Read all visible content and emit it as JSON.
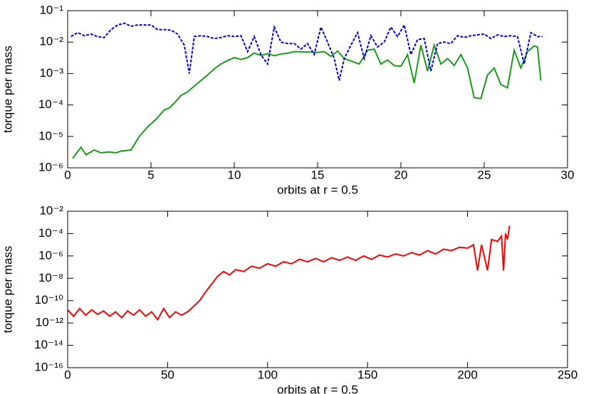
{
  "chart_data": [
    {
      "type": "line",
      "xlabel": "orbits at r = 0.5",
      "ylabel": "torque per mass",
      "log_y": true,
      "xlim": [
        0,
        30
      ],
      "xticks": [
        0,
        5,
        10,
        15,
        20,
        25,
        30
      ],
      "ylim": [
        1e-06,
        0.1
      ],
      "yticks": [
        {
          "value": 1e-06,
          "label": "10⁻⁶"
        },
        {
          "value": 1e-05,
          "label": "10⁻⁵"
        },
        {
          "value": 0.0001,
          "label": "10⁻⁴"
        },
        {
          "value": 0.001,
          "label": "10⁻³"
        },
        {
          "value": 0.01,
          "label": "10⁻²"
        },
        {
          "value": 0.1,
          "label": "10⁻¹"
        }
      ],
      "series": [
        {
          "color": "#1a9a1a",
          "dash": false,
          "x": [
            0.3,
            0.8,
            1.1,
            1.6,
            2,
            2.5,
            2.9,
            3.2,
            3.8,
            4.3,
            4.8,
            5.3,
            5.8,
            6.1,
            6.5,
            6.8,
            7.2,
            7.6,
            8,
            8.4,
            8.8,
            9.2,
            9.6,
            10,
            10.4,
            10.8,
            11.2,
            11.6,
            12,
            12.4,
            12.8,
            13.2,
            13.6,
            14,
            14.5,
            15,
            15.4,
            15.8,
            16.2,
            16.6,
            17,
            17.5,
            18,
            18.4,
            18.8,
            19.2,
            19.6,
            20,
            20.4,
            20.8,
            21.2,
            21.6,
            22,
            22.4,
            22.8,
            23.2,
            23.6,
            24,
            24.4,
            24.8,
            25.2,
            25.6,
            26,
            26.4,
            26.8,
            27.2,
            27.6,
            28,
            28.2,
            28.4
          ],
          "values": [
            2e-06,
            4.5e-06,
            2.6e-06,
            3.7e-06,
            3e-06,
            3.2e-06,
            3e-06,
            3.4e-06,
            3.7e-06,
            1e-05,
            2e-05,
            3.5e-05,
            7e-05,
            8e-05,
            0.00013,
            0.0002,
            0.00026,
            0.0004,
            0.0006,
            0.0009,
            0.0014,
            0.002,
            0.0026,
            0.0032,
            0.0028,
            0.0032,
            0.0045,
            0.0038,
            0.0043,
            0.0037,
            0.0042,
            0.0044,
            0.005,
            0.0049,
            0.0048,
            0.0047,
            0.005,
            0.0035,
            0.0052,
            0.003,
            0.0025,
            0.002,
            0.0055,
            0.006,
            0.002,
            0.0027,
            0.0018,
            0.0017,
            0.004,
            0.0005,
            0.008,
            0.0012,
            0.008,
            0.002,
            0.003,
            0.0018,
            0.004,
            0.0015,
            0.00017,
            0.00016,
            0.0009,
            0.0015,
            0.00045,
            0.00035,
            0.0055,
            0.0015,
            0.005,
            0.0075,
            0.007,
            0.0006
          ]
        },
        {
          "color": "#0000dd",
          "dash": true,
          "x": [
            0.2,
            0.6,
            1,
            1.4,
            1.8,
            2.2,
            2.6,
            3,
            3.4,
            3.8,
            4.2,
            4.6,
            5,
            5.4,
            5.8,
            6.2,
            6.6,
            7,
            7.3,
            7.6,
            8,
            8.4,
            8.8,
            9.2,
            9.6,
            10,
            10.4,
            10.8,
            11.2,
            11.6,
            12,
            12.4,
            12.8,
            13.2,
            13.6,
            14,
            14.4,
            14.8,
            15.2,
            15.6,
            16,
            16.3,
            16.6,
            17,
            17.4,
            17.8,
            18.2,
            18.6,
            19,
            19.4,
            19.8,
            20.2,
            20.6,
            21,
            21.4,
            21.8,
            22.2,
            22.6,
            23,
            23.4,
            23.8,
            24.2,
            24.6,
            25,
            25.4,
            25.8,
            26.2,
            26.6,
            27,
            27.4,
            27.8,
            28.2,
            28.5
          ],
          "values": [
            0.015,
            0.02,
            0.016,
            0.018,
            0.015,
            0.014,
            0.025,
            0.035,
            0.04,
            0.032,
            0.035,
            0.035,
            0.035,
            0.025,
            0.025,
            0.024,
            0.018,
            0.008,
            0.001,
            0.015,
            0.016,
            0.015,
            0.013,
            0.014,
            0.016,
            0.015,
            0.016,
            0.005,
            0.015,
            0.004,
            0.002,
            0.03,
            0.01,
            0.009,
            0.009,
            0.006,
            0.009,
            0.004,
            0.03,
            0.01,
            0.003,
            0.0006,
            0.003,
            0.008,
            0.02,
            0.003,
            0.016,
            0.007,
            0.01,
            0.03,
            0.015,
            0.035,
            0.004,
            0.012,
            0.013,
            0.0012,
            0.009,
            0.01,
            0.009,
            0.016,
            0.014,
            0.016,
            0.017,
            0.018,
            0.013,
            0.017,
            0.015,
            0.016,
            0.015,
            0.002,
            0.02,
            0.015,
            0.015
          ]
        }
      ]
    },
    {
      "type": "line",
      "xlabel": "orbits at r = 0.5",
      "ylabel": "torque per mass",
      "log_y": true,
      "xlim": [
        0,
        250
      ],
      "xticks": [
        0,
        50,
        100,
        150,
        200,
        250
      ],
      "ylim": [
        1e-16,
        0.01
      ],
      "yticks": [
        {
          "value": 1e-16,
          "label": "10⁻¹⁶"
        },
        {
          "value": 1e-14,
          "label": "10⁻¹⁴"
        },
        {
          "value": 1e-12,
          "label": "10⁻¹²"
        },
        {
          "value": 1e-10,
          "label": "10⁻¹⁰"
        },
        {
          "value": 1e-08,
          "label": "10⁻⁸"
        },
        {
          "value": 1e-06,
          "label": "10⁻⁶"
        },
        {
          "value": 0.0001,
          "label": "10⁻⁴"
        },
        {
          "value": 0.01,
          "label": "10⁻²"
        }
      ],
      "series": [
        {
          "color": "#ff0000",
          "dash": false,
          "x": [
            0,
            3,
            6,
            9,
            12,
            15,
            18,
            21,
            24,
            27,
            30,
            33,
            36,
            39,
            42,
            45,
            48,
            51,
            54,
            57,
            60,
            63,
            66,
            69,
            72,
            75,
            78,
            81,
            84,
            88,
            92,
            96,
            100,
            104,
            108,
            112,
            116,
            120,
            124,
            128,
            132,
            136,
            140,
            144,
            148,
            152,
            156,
            160,
            164,
            168,
            172,
            176,
            180,
            184,
            188,
            192,
            196,
            200,
            203,
            205,
            207,
            210,
            212,
            215,
            217,
            218,
            219,
            220,
            221
          ],
          "values": [
            1.5e-11,
            4e-12,
            2e-11,
            5e-12,
            1.5e-11,
            6e-12,
            1.2e-11,
            4e-12,
            1e-11,
            3e-12,
            1.2e-11,
            5e-12,
            1.5e-11,
            4e-12,
            1e-11,
            2e-12,
            2e-11,
            3e-12,
            1e-11,
            5e-12,
            1e-11,
            3e-11,
            1e-10,
            6e-10,
            3e-09,
            1.5e-08,
            4e-08,
            2e-08,
            6e-08,
            4e-08,
            1.2e-07,
            8e-08,
            2e-07,
            1.2e-07,
            3e-07,
            2e-07,
            5e-07,
            3e-07,
            6e-07,
            3e-07,
            7e-07,
            4e-07,
            8e-07,
            4e-07,
            1e-06,
            5e-07,
            1.2e-06,
            8e-07,
            1.5e-06,
            1e-06,
            2e-06,
            1.2e-06,
            3e-06,
            1.5e-06,
            4e-06,
            3e-06,
            6e-06,
            5e-06,
            1e-05,
            5e-08,
            1e-05,
            5e-08,
            3e-05,
            2e-05,
            6e-05,
            5e-08,
            0.0001,
            3e-05,
            0.0005
          ]
        }
      ]
    }
  ]
}
